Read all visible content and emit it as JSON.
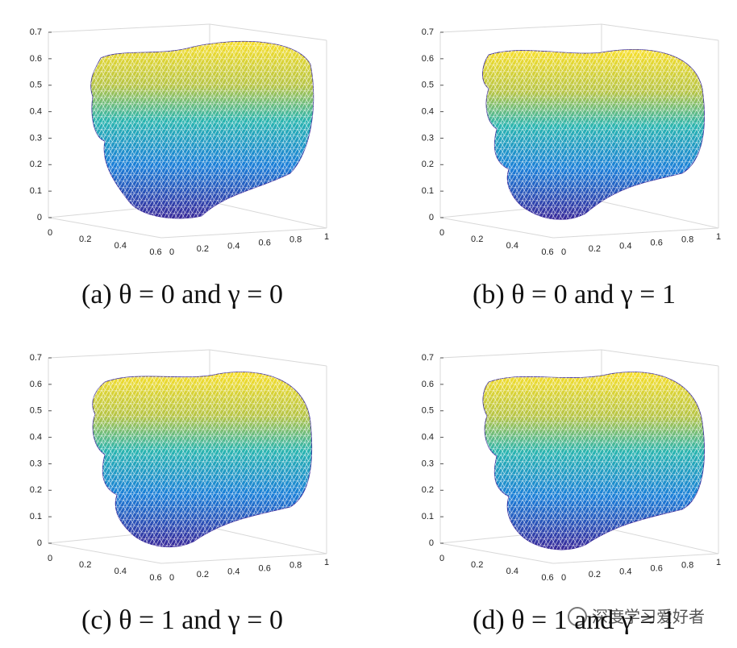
{
  "panels": [
    {
      "caption": "(a) θ = 0 and γ = 0",
      "zticks": [
        "0",
        "0.1",
        "0.2",
        "0.3",
        "0.4",
        "0.5",
        "0.6",
        "0.7"
      ],
      "xticks": [
        "0",
        "0.2",
        "0.4",
        "0.6"
      ],
      "yticks": [
        "0",
        "0.2",
        "0.4",
        "0.6",
        "0.8",
        "1"
      ]
    },
    {
      "caption": "(b) θ = 0 and γ = 1",
      "zticks": [
        "0",
        "0.1",
        "0.2",
        "0.3",
        "0.4",
        "0.5",
        "0.6",
        "0.7"
      ],
      "xticks": [
        "0",
        "0.2",
        "0.4",
        "0.6"
      ],
      "yticks": [
        "0",
        "0.2",
        "0.4",
        "0.6",
        "0.8",
        "1"
      ]
    },
    {
      "caption": "(c) θ = 1 and γ = 0",
      "zticks": [
        "0",
        "0.1",
        "0.2",
        "0.3",
        "0.4",
        "0.5",
        "0.6",
        "0.7"
      ],
      "xticks": [
        "0",
        "0.2",
        "0.4",
        "0.6"
      ],
      "yticks": [
        "0",
        "0.2",
        "0.4",
        "0.6",
        "0.8",
        "1"
      ]
    },
    {
      "caption": "(d) θ = 1 and γ = 1",
      "zticks": [
        "0",
        "0.1",
        "0.2",
        "0.3",
        "0.4",
        "0.5",
        "0.6",
        "0.7"
      ],
      "xticks": [
        "0",
        "0.2",
        "0.4",
        "0.6"
      ],
      "yticks": [
        "0",
        "0.2",
        "0.4",
        "0.6",
        "0.8",
        "1"
      ]
    }
  ],
  "watermark": "深度学习爱好者"
}
